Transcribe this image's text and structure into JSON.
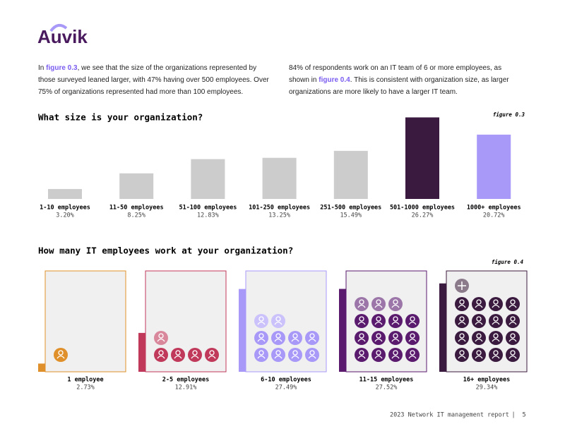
{
  "logo": "Auvik",
  "intro": [
    [
      "In ",
      "figure 0.3",
      ", we see that the size of the organizations represented by those surveyed leaned larger, with 47% having over 500 employees. Over 75% of organizations represented had more than 100 employees."
    ],
    [
      "84% of respondents work on an IT team of 6 or more employees, as shown in ",
      "figure 0.4",
      ". This is consistent with organization size, as larger organizations are more likely to have a larger IT team."
    ]
  ],
  "chart_data": [
    {
      "type": "bar",
      "title": "What size is your organization?",
      "figure": "figure 0.3",
      "categories": [
        "1-10 employees",
        "11-50 employees",
        "51-100 employees",
        "101-250 employees",
        "251-500 employees",
        "501-1000 employees",
        "1000+ employees"
      ],
      "values": [
        3.2,
        8.25,
        12.83,
        13.25,
        15.49,
        26.27,
        20.72
      ],
      "value_labels": [
        "3.20%",
        "8.25%",
        "12.83%",
        "13.25%",
        "15.49%",
        "26.27%",
        "20.72%"
      ],
      "colors": [
        "#cccccc",
        "#cccccc",
        "#cccccc",
        "#cccccc",
        "#cccccc",
        "#3a1a3e",
        "#a898f8"
      ]
    },
    {
      "type": "icon-box",
      "title": "How many IT employees work at your organization?",
      "figure": "figure 0.4",
      "categories": [
        "1 employee",
        "2-5 employees",
        "6-10 employees",
        "11-15 employees",
        "16+ employees"
      ],
      "values": [
        2.73,
        12.91,
        27.49,
        27.52,
        29.34
      ],
      "value_labels": [
        "2.73%",
        "12.91%",
        "27.49%",
        "27.52%",
        "29.34%"
      ],
      "colors": [
        "#e0902a",
        "#c0395a",
        "#a898f8",
        "#5a1a6e",
        "#3a1a3e"
      ]
    }
  ],
  "footer": [
    "2023 Network IT management report",
    "|",
    "5"
  ]
}
